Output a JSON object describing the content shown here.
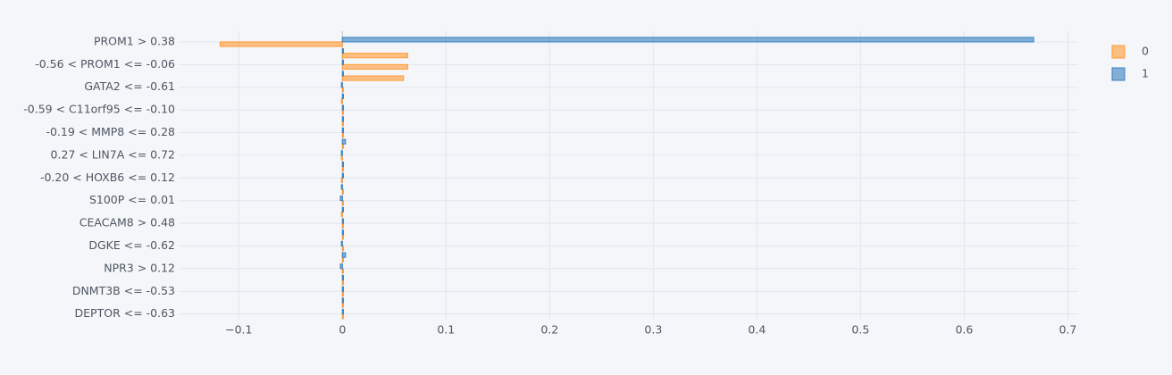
{
  "chart_data": {
    "type": "bar",
    "orientation": "horizontal",
    "categories": [
      "PROM1 > 0.38",
      null,
      "-0.56 < PROM1 <= -0.06",
      null,
      "GATA2 <= -0.61",
      null,
      "-0.59 < C11orf95 <= -0.10",
      null,
      "-0.19 < MMP8 <= 0.28",
      null,
      "0.27 < LIN7A <= 0.72",
      null,
      "-0.20 < HOXB6 <= 0.12",
      null,
      "S100P <= 0.01",
      null,
      "CEACAM8 > 0.48",
      null,
      "DGKE <= -0.62",
      null,
      "NPR3 > 0.12",
      null,
      "DNMT3B <= -0.53",
      null,
      "DEPTOR <= -0.63"
    ],
    "series": [
      {
        "name": "0",
        "color": "#ff9933",
        "values": [
          -0.118,
          0.063,
          0.063,
          0.059,
          0.001,
          -0.001,
          0.001,
          0.001,
          0.001,
          0.001,
          -0.001,
          0.001,
          -0.001,
          0.001,
          0.001,
          -0.001,
          0.001,
          0.001,
          0.001,
          0.001,
          0.001,
          0.001,
          0.001,
          0.001,
          0.001
        ]
      },
      {
        "name": "1",
        "color": "#3780bf",
        "values": [
          0.667,
          0.001,
          0.001,
          0.001,
          -0.001,
          0.001,
          0.001,
          0.001,
          0.001,
          0.003,
          -0.001,
          0.001,
          0.001,
          -0.001,
          -0.002,
          0.001,
          0.001,
          0.001,
          -0.001,
          0.003,
          -0.002,
          0.001,
          0.001,
          0.001,
          0.001
        ]
      }
    ],
    "xlim": [
      -0.158,
      0.71
    ],
    "xticks": [
      {
        "value": -0.1,
        "label": "−0.1"
      },
      0,
      0.1,
      0.2,
      0.3,
      0.4,
      0.5,
      0.6,
      0.7
    ],
    "grid": true,
    "legend": "top-right"
  }
}
